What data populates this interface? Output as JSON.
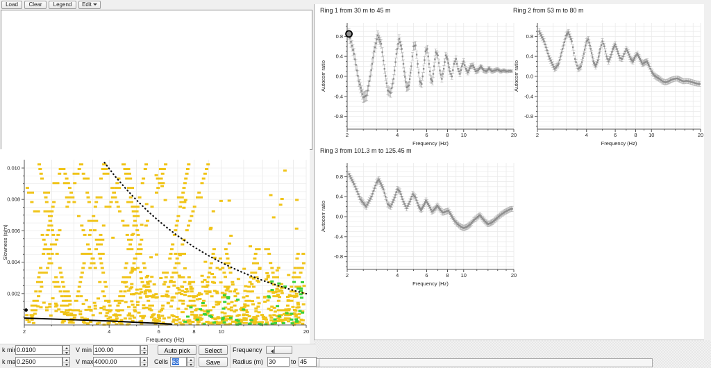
{
  "toolbar": {
    "buttons": [
      {
        "label": "Load"
      },
      {
        "label": "Clear"
      },
      {
        "label": "Legend"
      },
      {
        "label": "Edit",
        "has_menu": true
      }
    ]
  },
  "controls": {
    "k_min": {
      "label": "k min",
      "value": "0.0100"
    },
    "k_max": {
      "label": "k max",
      "value": "0.2500"
    },
    "v_min": {
      "label": "V min",
      "value": "100.00"
    },
    "v_max": {
      "label": "V max",
      "value": "4000.00"
    },
    "cells": {
      "label": "Cells",
      "value": "63"
    },
    "auto_pick_label": "Auto pick",
    "select_label": "Select",
    "save_label": "Save",
    "frequency_label": "Frequency",
    "radius": {
      "label": "Radius (m)",
      "from": "30",
      "to_label": "to",
      "to": "45"
    }
  },
  "colors": {
    "cell_yellow": "#f0c419",
    "cell_green": "#3bd13b",
    "point_gray": "#a6a6a6",
    "marker_gray": "#8d8d8d",
    "selection_blue": "#3875d7"
  },
  "chart_data": [
    {
      "type": "heatmap",
      "title": "",
      "xlabel": "Frequency (Hz)",
      "ylabel": "Slowness (s/m)",
      "xscale": "log",
      "xlim": [
        2,
        20
      ],
      "ylim": [
        0,
        0.0105
      ],
      "grid": true,
      "x_ticks": [
        {
          "v": 2,
          "label": "2"
        },
        {
          "v": 4,
          "label": "4"
        },
        {
          "v": 6,
          "label": "6"
        },
        {
          "v": 8,
          "label": "8"
        },
        {
          "v": 10,
          "label": "10"
        },
        {
          "v": 20,
          "label": "20"
        }
      ],
      "x_grid": [
        2,
        2.5,
        3,
        3.5,
        4,
        5,
        6,
        7,
        8,
        9,
        10,
        12,
        14,
        16,
        18,
        20
      ],
      "y_ticks": [
        {
          "v": 0.002,
          "label": "0.002"
        },
        {
          "v": 0.004,
          "label": "0.004"
        },
        {
          "v": 0.006,
          "label": "0.006"
        },
        {
          "v": 0.008,
          "label": "0.008"
        },
        {
          "v": 0.01,
          "label": "0.010"
        }
      ],
      "y_minor_step": 0.0005,
      "cell_color": "#f0c419",
      "highlight_color": "#3bd13b",
      "fan_vertices": [
        2.05,
        2.9,
        4.1,
        5.8,
        8.2,
        11.6,
        16.4
      ],
      "seed": 11,
      "dotted_limit_curve": {
        "label": "k-max aliasing limit",
        "points": [
          [
            3.85,
            0.01035
          ],
          [
            4.2,
            0.00947
          ],
          [
            4.6,
            0.00865
          ],
          [
            5,
            0.00796
          ],
          [
            5.5,
            0.00723
          ],
          [
            6,
            0.00663
          ],
          [
            6.5,
            0.00612
          ],
          [
            7,
            0.00568
          ],
          [
            7.5,
            0.00531
          ],
          [
            8,
            0.00497
          ],
          [
            9,
            0.00442
          ],
          [
            10,
            0.00398
          ],
          [
            11,
            0.00362
          ],
          [
            12,
            0.00332
          ],
          [
            13,
            0.00306
          ],
          [
            14,
            0.00284
          ],
          [
            15,
            0.00265
          ],
          [
            16,
            0.00249
          ],
          [
            17,
            0.00234
          ],
          [
            18,
            0.00221
          ],
          [
            19,
            0.00209
          ],
          [
            20,
            0.00199
          ]
        ]
      },
      "solid_pick_curve": {
        "points": [
          [
            2,
            0.00044
          ],
          [
            3,
            0.00033
          ],
          [
            4,
            0.00025
          ],
          [
            5,
            0.00017
          ],
          [
            6,
            0.0001
          ],
          [
            6.7,
            5e-05
          ]
        ]
      },
      "marker_point": {
        "f": 2.03,
        "slowness": 0.00095
      }
    },
    {
      "type": "scatter",
      "title": "Ring 1 from 30 m to 45 m",
      "xlabel": "Frequency (Hz)",
      "ylabel": "Autocorr ratio",
      "xscale": "log",
      "xlim": [
        2,
        20
      ],
      "ylim": [
        -1,
        1
      ],
      "grid": true,
      "x_ticks": [
        {
          "v": 2,
          "label": "2"
        },
        {
          "v": 4,
          "label": "4"
        },
        {
          "v": 6,
          "label": "6"
        },
        {
          "v": 8,
          "label": "8"
        },
        {
          "v": 10,
          "label": "10"
        },
        {
          "v": 20,
          "label": "20"
        }
      ],
      "x_grid": [
        2,
        2.5,
        3,
        3.5,
        4,
        5,
        6,
        7,
        8,
        9,
        10,
        12,
        14,
        16,
        18,
        20
      ],
      "y_ticks": [
        {
          "v": 0.8,
          "label": "0.8"
        },
        {
          "v": 0.4,
          "label": "0.4"
        },
        {
          "v": 0,
          "label": "0.0"
        },
        {
          "v": -0.4,
          "label": "-0.4"
        },
        {
          "v": -0.8,
          "label": "-0.8"
        }
      ],
      "err_start": 0.11,
      "err_end": 0.03,
      "highlight_first_point": true,
      "points": [
        [
          2.05,
          0.85
        ],
        [
          2.2,
          0.45
        ],
        [
          2.35,
          -0.1
        ],
        [
          2.5,
          -0.42
        ],
        [
          2.62,
          -0.38
        ],
        [
          2.75,
          0.0
        ],
        [
          2.9,
          0.5
        ],
        [
          3.05,
          0.82
        ],
        [
          3.2,
          0.65
        ],
        [
          3.35,
          0.15
        ],
        [
          3.5,
          -0.28
        ],
        [
          3.65,
          -0.33
        ],
        [
          3.8,
          -0.05
        ],
        [
          3.95,
          0.45
        ],
        [
          4.1,
          0.75
        ],
        [
          4.25,
          0.55
        ],
        [
          4.4,
          0.1
        ],
        [
          4.55,
          -0.22
        ],
        [
          4.7,
          -0.18
        ],
        [
          4.85,
          0.2
        ],
        [
          5.0,
          0.6
        ],
        [
          5.15,
          0.62
        ],
        [
          5.3,
          0.25
        ],
        [
          5.45,
          -0.1
        ],
        [
          5.6,
          -0.15
        ],
        [
          5.75,
          0.15
        ],
        [
          5.9,
          0.5
        ],
        [
          6.05,
          0.55
        ],
        [
          6.2,
          0.25
        ],
        [
          6.35,
          -0.05
        ],
        [
          6.5,
          -0.1
        ],
        [
          6.65,
          0.2
        ],
        [
          6.8,
          0.48
        ],
        [
          7.0,
          0.42
        ],
        [
          7.2,
          0.12
        ],
        [
          7.4,
          -0.05
        ],
        [
          7.6,
          0.15
        ],
        [
          7.8,
          0.42
        ],
        [
          8.0,
          0.35
        ],
        [
          8.25,
          0.1
        ],
        [
          8.5,
          0.0
        ],
        [
          8.75,
          0.25
        ],
        [
          9.0,
          0.35
        ],
        [
          9.25,
          0.15
        ],
        [
          9.5,
          0.05
        ],
        [
          9.75,
          0.2
        ],
        [
          10.0,
          0.3
        ],
        [
          10.3,
          0.15
        ],
        [
          10.6,
          0.08
        ],
        [
          11.0,
          0.2
        ],
        [
          11.4,
          0.22
        ],
        [
          11.8,
          0.1
        ],
        [
          12.2,
          0.12
        ],
        [
          12.7,
          0.2
        ],
        [
          13.2,
          0.12
        ],
        [
          13.7,
          0.1
        ],
        [
          14.2,
          0.16
        ],
        [
          14.8,
          0.1
        ],
        [
          15.4,
          0.12
        ],
        [
          16.0,
          0.14
        ],
        [
          16.7,
          0.1
        ],
        [
          17.4,
          0.12
        ],
        [
          18.1,
          0.1
        ],
        [
          18.9,
          0.11
        ],
        [
          19.7,
          0.1
        ]
      ]
    },
    {
      "type": "scatter",
      "title": "Ring 2 from 53 m to 80 m",
      "xlabel": "Frequency (Hz)",
      "ylabel": "Autocorr ratio",
      "xscale": "log",
      "xlim": [
        2,
        20
      ],
      "ylim": [
        -1,
        1
      ],
      "grid": true,
      "x_ticks": [
        {
          "v": 2,
          "label": "2"
        },
        {
          "v": 4,
          "label": "4"
        },
        {
          "v": 6,
          "label": "6"
        },
        {
          "v": 8,
          "label": "8"
        },
        {
          "v": 10,
          "label": "10"
        },
        {
          "v": 20,
          "label": "20"
        }
      ],
      "x_grid": [
        2,
        2.5,
        3,
        3.5,
        4,
        5,
        6,
        7,
        8,
        9,
        10,
        12,
        14,
        16,
        18,
        20
      ],
      "y_ticks": [
        {
          "v": 0.8,
          "label": "0.8"
        },
        {
          "v": 0.4,
          "label": "0.4"
        },
        {
          "v": 0,
          "label": "0.0"
        },
        {
          "v": -0.4,
          "label": "-0.4"
        },
        {
          "v": -0.8,
          "label": "-0.8"
        }
      ],
      "err_start": 0.06,
      "err_end": 0.05,
      "highlight_first_point": false,
      "points": [
        [
          2.05,
          0.9
        ],
        [
          2.2,
          0.7
        ],
        [
          2.35,
          0.4
        ],
        [
          2.55,
          0.15
        ],
        [
          2.7,
          0.25
        ],
        [
          2.85,
          0.55
        ],
        [
          3.0,
          0.82
        ],
        [
          3.1,
          0.88
        ],
        [
          3.25,
          0.7
        ],
        [
          3.4,
          0.35
        ],
        [
          3.55,
          0.15
        ],
        [
          3.7,
          0.2
        ],
        [
          3.85,
          0.45
        ],
        [
          4.0,
          0.7
        ],
        [
          4.1,
          0.74
        ],
        [
          4.25,
          0.55
        ],
        [
          4.4,
          0.3
        ],
        [
          4.55,
          0.2
        ],
        [
          4.7,
          0.32
        ],
        [
          4.85,
          0.55
        ],
        [
          5.0,
          0.7
        ],
        [
          5.15,
          0.6
        ],
        [
          5.3,
          0.4
        ],
        [
          5.45,
          0.3
        ],
        [
          5.6,
          0.38
        ],
        [
          5.8,
          0.55
        ],
        [
          6.0,
          0.64
        ],
        [
          6.2,
          0.5
        ],
        [
          6.4,
          0.37
        ],
        [
          6.6,
          0.35
        ],
        [
          6.8,
          0.45
        ],
        [
          7.0,
          0.55
        ],
        [
          7.2,
          0.48
        ],
        [
          7.45,
          0.35
        ],
        [
          7.7,
          0.3
        ],
        [
          7.95,
          0.4
        ],
        [
          8.2,
          0.45
        ],
        [
          8.5,
          0.35
        ],
        [
          8.8,
          0.25
        ],
        [
          9.1,
          0.28
        ],
        [
          9.4,
          0.3
        ],
        [
          9.7,
          0.2
        ],
        [
          10.0,
          0.1
        ],
        [
          10.4,
          0.02
        ],
        [
          10.8,
          -0.02
        ],
        [
          11.2,
          -0.05
        ],
        [
          11.7,
          -0.1
        ],
        [
          12.2,
          -0.12
        ],
        [
          12.7,
          -0.1
        ],
        [
          13.2,
          -0.07
        ],
        [
          13.8,
          -0.05
        ],
        [
          14.4,
          -0.04
        ],
        [
          15.0,
          -0.07
        ],
        [
          15.7,
          -0.1
        ],
        [
          16.4,
          -0.09
        ],
        [
          17.1,
          -0.1
        ],
        [
          17.9,
          -0.12
        ],
        [
          18.7,
          -0.14
        ],
        [
          19.5,
          -0.15
        ],
        [
          20,
          -0.15
        ]
      ]
    },
    {
      "type": "scatter",
      "title": "Ring 3 from 101.3 m to 125.45 m",
      "xlabel": "Frequency (Hz)",
      "ylabel": "Autocorr ratio",
      "xscale": "log",
      "xlim": [
        2,
        20
      ],
      "ylim": [
        -1,
        1
      ],
      "grid": true,
      "x_ticks": [
        {
          "v": 2,
          "label": "2"
        },
        {
          "v": 4,
          "label": "4"
        },
        {
          "v": 6,
          "label": "6"
        },
        {
          "v": 8,
          "label": "8"
        },
        {
          "v": 10,
          "label": "10"
        },
        {
          "v": 20,
          "label": "20"
        }
      ],
      "x_grid": [
        2,
        2.5,
        3,
        3.5,
        4,
        5,
        6,
        7,
        8,
        9,
        10,
        12,
        14,
        16,
        18,
        20
      ],
      "y_ticks": [
        {
          "v": 0.8,
          "label": "0.8"
        },
        {
          "v": 0.4,
          "label": "0.4"
        },
        {
          "v": 0,
          "label": "0.0"
        },
        {
          "v": -0.4,
          "label": "-0.4"
        },
        {
          "v": -0.8,
          "label": "-0.8"
        }
      ],
      "err_start": 0.06,
      "err_end": 0.05,
      "highlight_first_point": false,
      "points": [
        [
          2.05,
          0.85
        ],
        [
          2.2,
          0.65
        ],
        [
          2.4,
          0.35
        ],
        [
          2.6,
          0.2
        ],
        [
          2.8,
          0.4
        ],
        [
          3.0,
          0.68
        ],
        [
          3.1,
          0.74
        ],
        [
          3.3,
          0.55
        ],
        [
          3.5,
          0.25
        ],
        [
          3.65,
          0.2
        ],
        [
          3.85,
          0.38
        ],
        [
          4.0,
          0.55
        ],
        [
          4.15,
          0.5
        ],
        [
          4.35,
          0.3
        ],
        [
          4.55,
          0.17
        ],
        [
          4.75,
          0.3
        ],
        [
          4.95,
          0.45
        ],
        [
          5.15,
          0.38
        ],
        [
          5.35,
          0.22
        ],
        [
          5.55,
          0.13
        ],
        [
          5.75,
          0.22
        ],
        [
          5.95,
          0.32
        ],
        [
          6.2,
          0.22
        ],
        [
          6.45,
          0.1
        ],
        [
          6.7,
          0.15
        ],
        [
          6.95,
          0.22
        ],
        [
          7.2,
          0.15
        ],
        [
          7.5,
          0.08
        ],
        [
          7.8,
          0.1
        ],
        [
          8.1,
          0.12
        ],
        [
          8.45,
          0.02
        ],
        [
          8.8,
          -0.08
        ],
        [
          9.2,
          -0.15
        ],
        [
          9.6,
          -0.2
        ],
        [
          10.0,
          -0.23
        ],
        [
          10.5,
          -0.2
        ],
        [
          11.0,
          -0.15
        ],
        [
          11.5,
          -0.07
        ],
        [
          12.0,
          -0.02
        ],
        [
          12.5,
          0.03
        ],
        [
          13.0,
          -0.04
        ],
        [
          13.5,
          -0.1
        ],
        [
          14.0,
          -0.15
        ],
        [
          14.5,
          -0.13
        ],
        [
          15.0,
          -0.1
        ],
        [
          15.6,
          -0.05
        ],
        [
          16.2,
          0.0
        ],
        [
          16.9,
          0.05
        ],
        [
          17.6,
          0.09
        ],
        [
          18.3,
          0.12
        ],
        [
          19.1,
          0.15
        ],
        [
          19.8,
          0.16
        ]
      ]
    }
  ]
}
